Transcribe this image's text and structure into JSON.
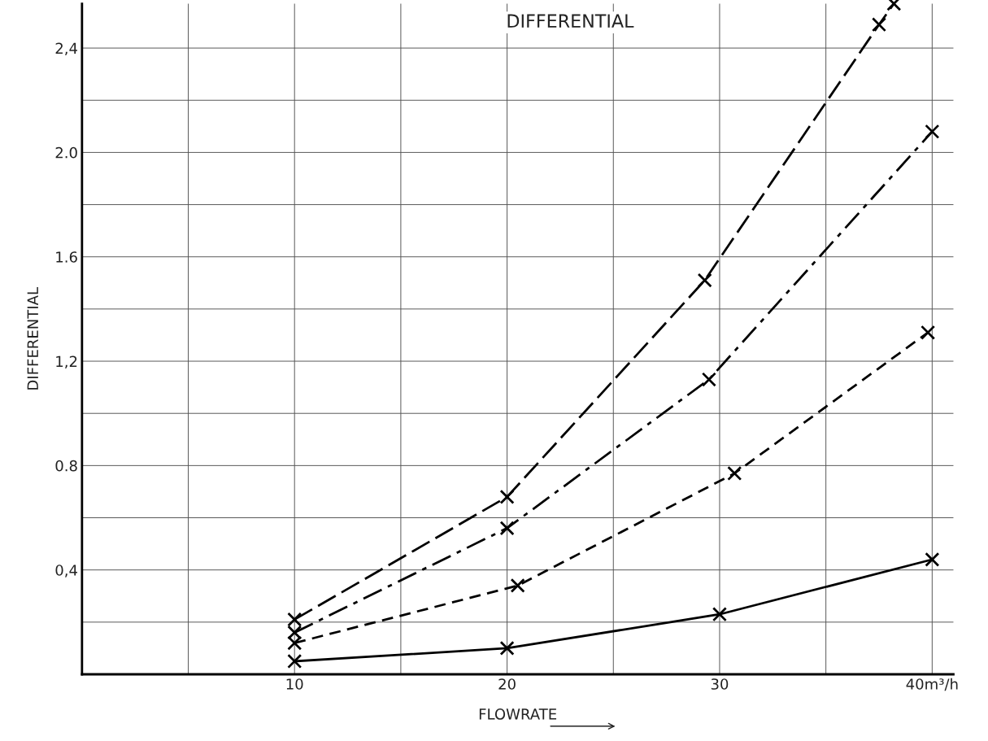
{
  "chart_data": {
    "type": "line",
    "title": "DIFFERENTIAL",
    "xlabel": "FLOWRATE",
    "ylabel": "DIFFERENTIAL",
    "xlim": [
      0,
      41
    ],
    "ylim": [
      0,
      2.57
    ],
    "xticks": [
      {
        "value": 5,
        "label": null
      },
      10,
      {
        "value": 15,
        "label": null
      },
      20,
      {
        "value": 25,
        "label": null
      },
      30,
      {
        "value": 35,
        "label": null
      },
      {
        "value": 40,
        "label": "40m³/h"
      }
    ],
    "yticks": [
      {
        "value": 0.2,
        "label": null
      },
      {
        "value": 0.4,
        "label": "0,4"
      },
      {
        "value": 0.6,
        "label": null
      },
      0.8,
      {
        "value": 1.0,
        "label": null
      },
      {
        "value": 1.2,
        "label": "1,2"
      },
      {
        "value": 1.4,
        "label": null
      },
      1.6,
      {
        "value": 1.8,
        "label": null
      },
      {
        "value": 2.0,
        "label": "2.0"
      },
      {
        "value": 2.2,
        "label": null
      },
      {
        "value": 2.4,
        "label": "2,4"
      }
    ],
    "grid": true,
    "marker": "cross",
    "series": [
      {
        "color": "#000000",
        "line_style": "longdash",
        "x": [
          10,
          20,
          29.3,
          37.5,
          38.2
        ],
        "values": [
          0.21,
          0.68,
          1.51,
          2.49,
          2.57
        ]
      },
      {
        "color": "#000000",
        "line_style": "dashdot",
        "x": [
          10,
          20,
          29.5,
          40
        ],
        "values": [
          0.16,
          0.56,
          1.13,
          2.08
        ]
      },
      {
        "color": "#000000",
        "line_style": "dashed",
        "x": [
          10,
          20.5,
          30.7,
          39.8
        ],
        "values": [
          0.12,
          0.34,
          0.77,
          1.31
        ]
      },
      {
        "color": "#000000",
        "line_style": "solid",
        "x": [
          10,
          20,
          30,
          40
        ],
        "values": [
          0.05,
          0.1,
          0.23,
          0.44
        ]
      }
    ]
  }
}
